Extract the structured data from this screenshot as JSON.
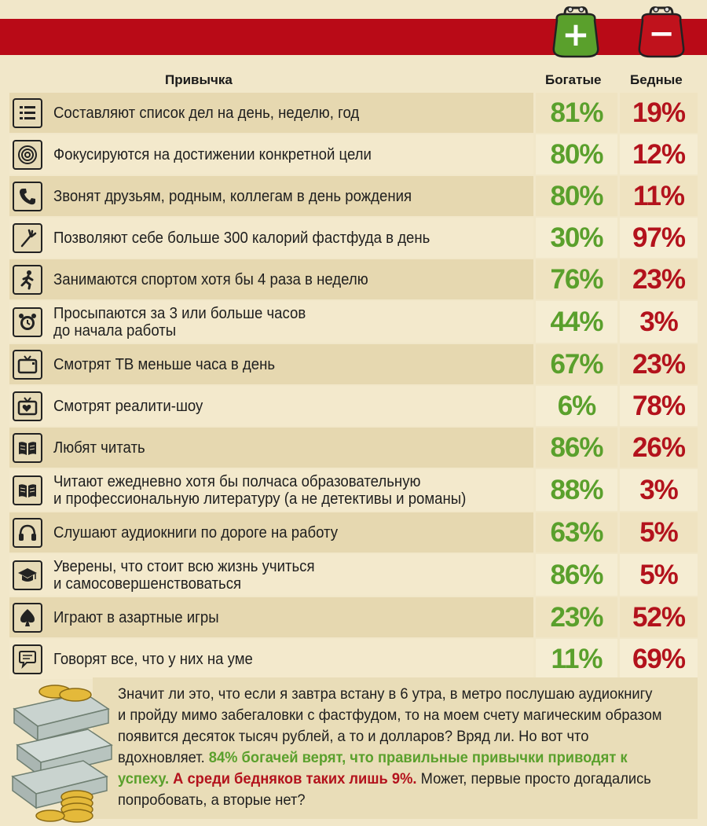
{
  "header": {
    "habit_label": "Привычка",
    "rich_label": "Богатые",
    "poor_label": "Бедные",
    "rich_sign": "+",
    "poor_sign": "−"
  },
  "rows": [
    {
      "icon": "list-icon",
      "text": "Составляют список дел на день, неделю, год",
      "rich": "81%",
      "poor": "19%"
    },
    {
      "icon": "target-icon",
      "text": "Фокусируются на достижении конкретной цели",
      "rich": "80%",
      "poor": "12%"
    },
    {
      "icon": "phone-icon",
      "text": "Звонят друзьям, родным, коллегам в день рождения",
      "rich": "80%",
      "poor": "11%"
    },
    {
      "icon": "fork-icon",
      "text": "Позволяют себе больше 300 калорий фастфуда в день",
      "rich": "30%",
      "poor": "97%"
    },
    {
      "icon": "runner-icon",
      "text": "Занимаются спортом хотя бы 4 раза в неделю",
      "rich": "76%",
      "poor": "23%"
    },
    {
      "icon": "alarm-clock-icon",
      "text": "Просыпаются за 3 или больше часов\nдо начала работы",
      "rich": "44%",
      "poor": "3%"
    },
    {
      "icon": "tv-icon",
      "text": "Смотрят ТВ меньше часа в день",
      "rich": "67%",
      "poor": "23%"
    },
    {
      "icon": "tv-heart-icon",
      "text": "Смотрят реалити-шоу",
      "rich": "6%",
      "poor": "78%"
    },
    {
      "icon": "book-icon",
      "text": "Любят читать",
      "rich": "86%",
      "poor": "26%"
    },
    {
      "icon": "book-icon",
      "text": "Читают ежедневно хотя бы полчаса образовательную\nи профессиональную литературу (а не детективы и романы)",
      "rich": "88%",
      "poor": "3%"
    },
    {
      "icon": "headphones-icon",
      "text": "Слушают аудиокниги по дороге на работу",
      "rich": "63%",
      "poor": "5%"
    },
    {
      "icon": "graduation-cap-icon",
      "text": "Уверены, что стоит всю жизнь учиться\nи самосовершенствоваться",
      "rich": "86%",
      "poor": "5%"
    },
    {
      "icon": "spade-icon",
      "text": "Играют в азартные игры",
      "rich": "23%",
      "poor": "52%"
    },
    {
      "icon": "speech-bubble-icon",
      "text": "Говорят все, что у них на уме",
      "rich": "11%",
      "poor": "69%"
    }
  ],
  "note": {
    "part1": "Значит ли это, что если я завтра встану в 6 утра, в метро послушаю аудиокнигу и пройду мимо забегаловки с фастфудом, то на моем счету магическим образом появится десяток тысяч рублей, а то и долларов? Вряд ли. Но вот что вдохновляет.",
    "green": "84% богачей верят, что правильные привычки приводят к успеху.",
    "red": "А среди бедняков таких лишь 9%.",
    "part2": "Может, первые просто догадались попробовать, а вторые нет?"
  },
  "colors": {
    "red_bar": "#b90a17",
    "rich": "#5aa02c",
    "poor": "#b3121c",
    "background": "#f1e7c9"
  }
}
